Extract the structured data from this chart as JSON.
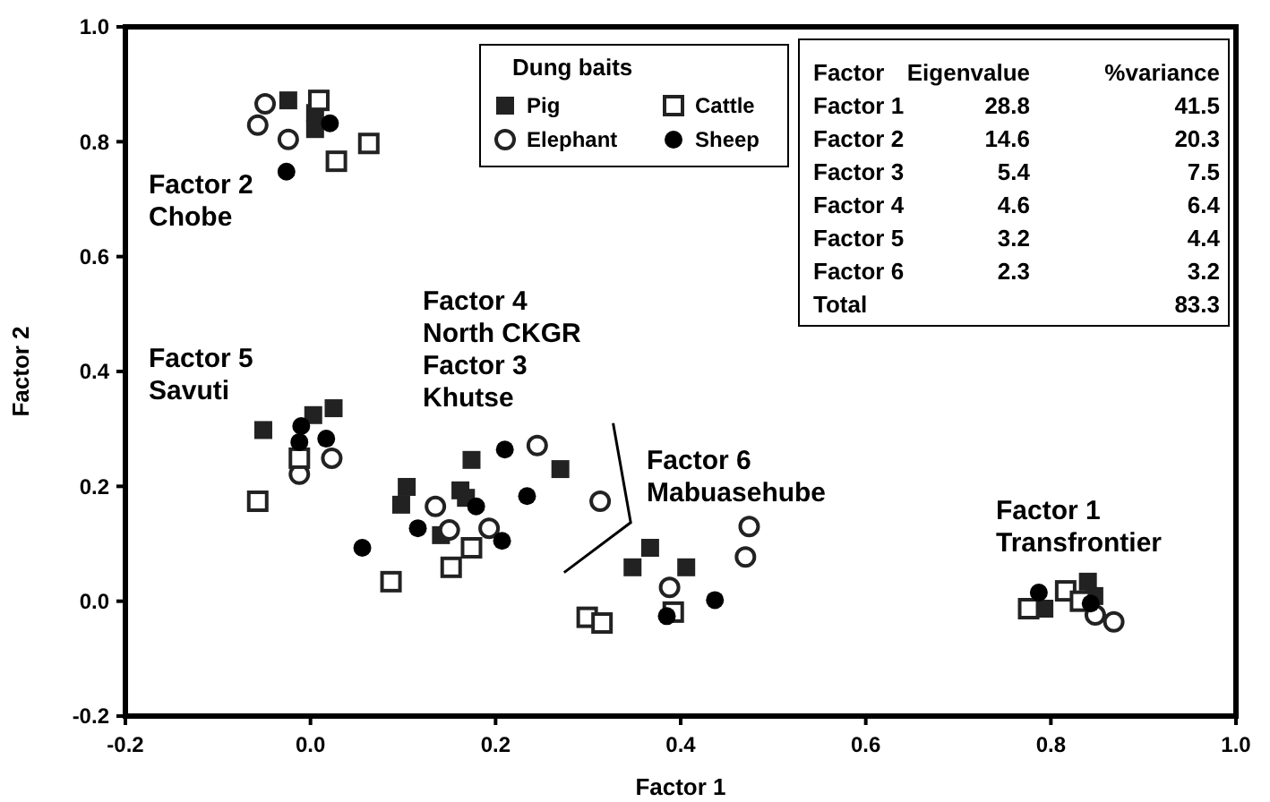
{
  "chart_data": {
    "type": "scatter",
    "xlabel": "Factor 1",
    "ylabel": "Factor 2",
    "legend_title": "Dung baits",
    "legend": "top",
    "xlim": [
      -0.2,
      1.0
    ],
    "ylim": [
      -0.2,
      1.0
    ],
    "xticks": [
      {
        "value": -0.2,
        "label": "-0.2"
      },
      {
        "value": 0,
        "label": "0.0"
      },
      {
        "value": 0.2,
        "label": "0.2"
      },
      {
        "value": 0.4,
        "label": "0.4"
      },
      {
        "value": 0.6,
        "label": "0.6"
      },
      {
        "value": 0.8,
        "label": "0.8"
      },
      {
        "value": 1.0,
        "label": "1.0"
      }
    ],
    "yticks": [
      {
        "value": -0.2,
        "label": "-0.2"
      },
      {
        "value": 0,
        "label": "0.0"
      },
      {
        "value": 0.2,
        "label": "0.2"
      },
      {
        "value": 0.4,
        "label": "0.4"
      },
      {
        "value": 0.6,
        "label": "0.6"
      },
      {
        "value": 0.8,
        "label": "0.8"
      },
      {
        "value": 1.0,
        "label": "1.0"
      }
    ],
    "grid": false,
    "series": [
      {
        "name": "Pig",
        "color": "#222222",
        "marker": "square",
        "x": [
          -0.024,
          0.005,
          0.005,
          -0.051,
          0.003,
          0.025,
          0.174,
          0.27,
          0.162,
          0.168,
          0.098,
          0.104,
          0.141,
          0.367,
          0.348,
          0.406,
          0.793,
          0.84,
          0.847
        ],
        "values": [
          0.872,
          0.85,
          0.822,
          0.298,
          0.324,
          0.336,
          0.246,
          0.23,
          0.193,
          0.18,
          0.168,
          0.199,
          0.115,
          0.093,
          0.059,
          0.059,
          -0.013,
          0.034,
          0.009
        ]
      },
      {
        "name": "Elephant",
        "color": "#ffffff",
        "marker": "circle",
        "x": [
          -0.049,
          -0.057,
          -0.024,
          -0.012,
          0.023,
          0.245,
          0.313,
          0.135,
          0.193,
          0.15,
          0.474,
          0.47,
          0.388,
          0.848,
          0.868
        ],
        "values": [
          0.866,
          0.829,
          0.804,
          0.221,
          0.249,
          0.271,
          0.174,
          0.165,
          0.127,
          0.124,
          0.13,
          0.077,
          0.024,
          -0.024,
          -0.036
        ]
      },
      {
        "name": "Cattle",
        "color": "#ffffff",
        "marker": "square",
        "x": [
          0.009,
          0.063,
          0.028,
          -0.012,
          -0.057,
          0.174,
          0.152,
          0.087,
          0.392,
          0.299,
          0.315,
          0.776,
          0.816,
          0.832
        ],
        "values": [
          0.872,
          0.797,
          0.766,
          0.249,
          0.174,
          0.093,
          0.059,
          0.034,
          -0.019,
          -0.028,
          -0.038,
          -0.013,
          0.018,
          0.0
        ]
      },
      {
        "name": "Sheep",
        "color": "#000000",
        "marker": "circle",
        "x": [
          0.021,
          -0.026,
          -0.01,
          -0.012,
          0.017,
          0.21,
          0.234,
          0.179,
          0.116,
          0.207,
          0.056,
          0.437,
          0.385,
          0.787,
          0.843
        ],
        "values": [
          0.832,
          0.748,
          0.305,
          0.277,
          0.283,
          0.264,
          0.183,
          0.165,
          0.127,
          0.105,
          0.093,
          0.002,
          -0.026,
          0.015,
          -0.004
        ]
      }
    ],
    "annotations": [
      "Factor 2\nChobe",
      "Factor 5\nSavuti",
      "Factor 4\nNorth CKGR\nFactor 3\nKhutse",
      "Factor 6\nMabuasehube",
      "Factor 1\nTransfrontier",
      "Factor\tEigenvalue\t%variance",
      "Factor 1\t28.8\t41.5",
      "Factor 2\t14.6\t20.3",
      "Factor 3\t5.4\t7.5",
      "Factor 4\t4.6\t6.4",
      "Factor 5\t3.2\t4.4",
      "Factor 6\t2.3\t3.2",
      "Total\t\t83.3"
    ]
  }
}
